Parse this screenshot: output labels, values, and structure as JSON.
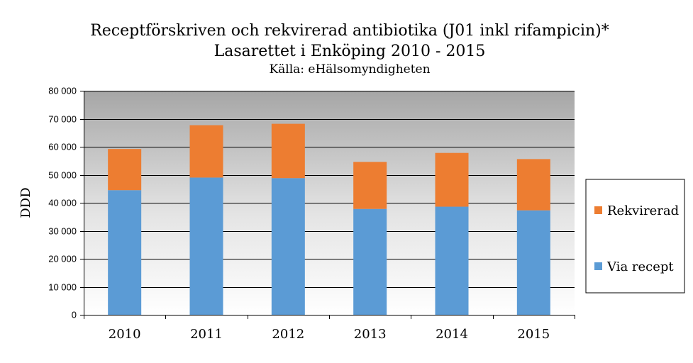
{
  "chart_data": {
    "type": "bar",
    "stacked": true,
    "title": "Receptförskriven och rekvirerad antibiotika (J01 inkl rifampicin)*",
    "subtitle": "Lasarettet i Enköping 2010 - 2015",
    "source": "Källa: eHälsomyndigheten",
    "xlabel": "",
    "ylabel": "DDD",
    "categories": [
      "2010",
      "2011",
      "2012",
      "2013",
      "2014",
      "2015"
    ],
    "series": [
      {
        "name": "Via recept",
        "color": "#5b9bd5",
        "values": [
          44500,
          49000,
          48800,
          37800,
          38600,
          37300
        ]
      },
      {
        "name": "Rekvirerad",
        "color": "#ed7d31",
        "values": [
          14700,
          18700,
          19400,
          16800,
          19200,
          18300
        ]
      }
    ],
    "ylim": [
      0,
      80000
    ],
    "yticks": [
      0,
      10000,
      20000,
      30000,
      40000,
      50000,
      60000,
      70000,
      80000
    ],
    "ytick_labels": [
      "0",
      "10 000",
      "20 000",
      "30 000",
      "40 000",
      "50 000",
      "60 000",
      "70 000",
      "80 000"
    ],
    "grid": true,
    "legend_position": "right",
    "legend_order": [
      "Rekvirerad",
      "Via recept"
    ]
  }
}
